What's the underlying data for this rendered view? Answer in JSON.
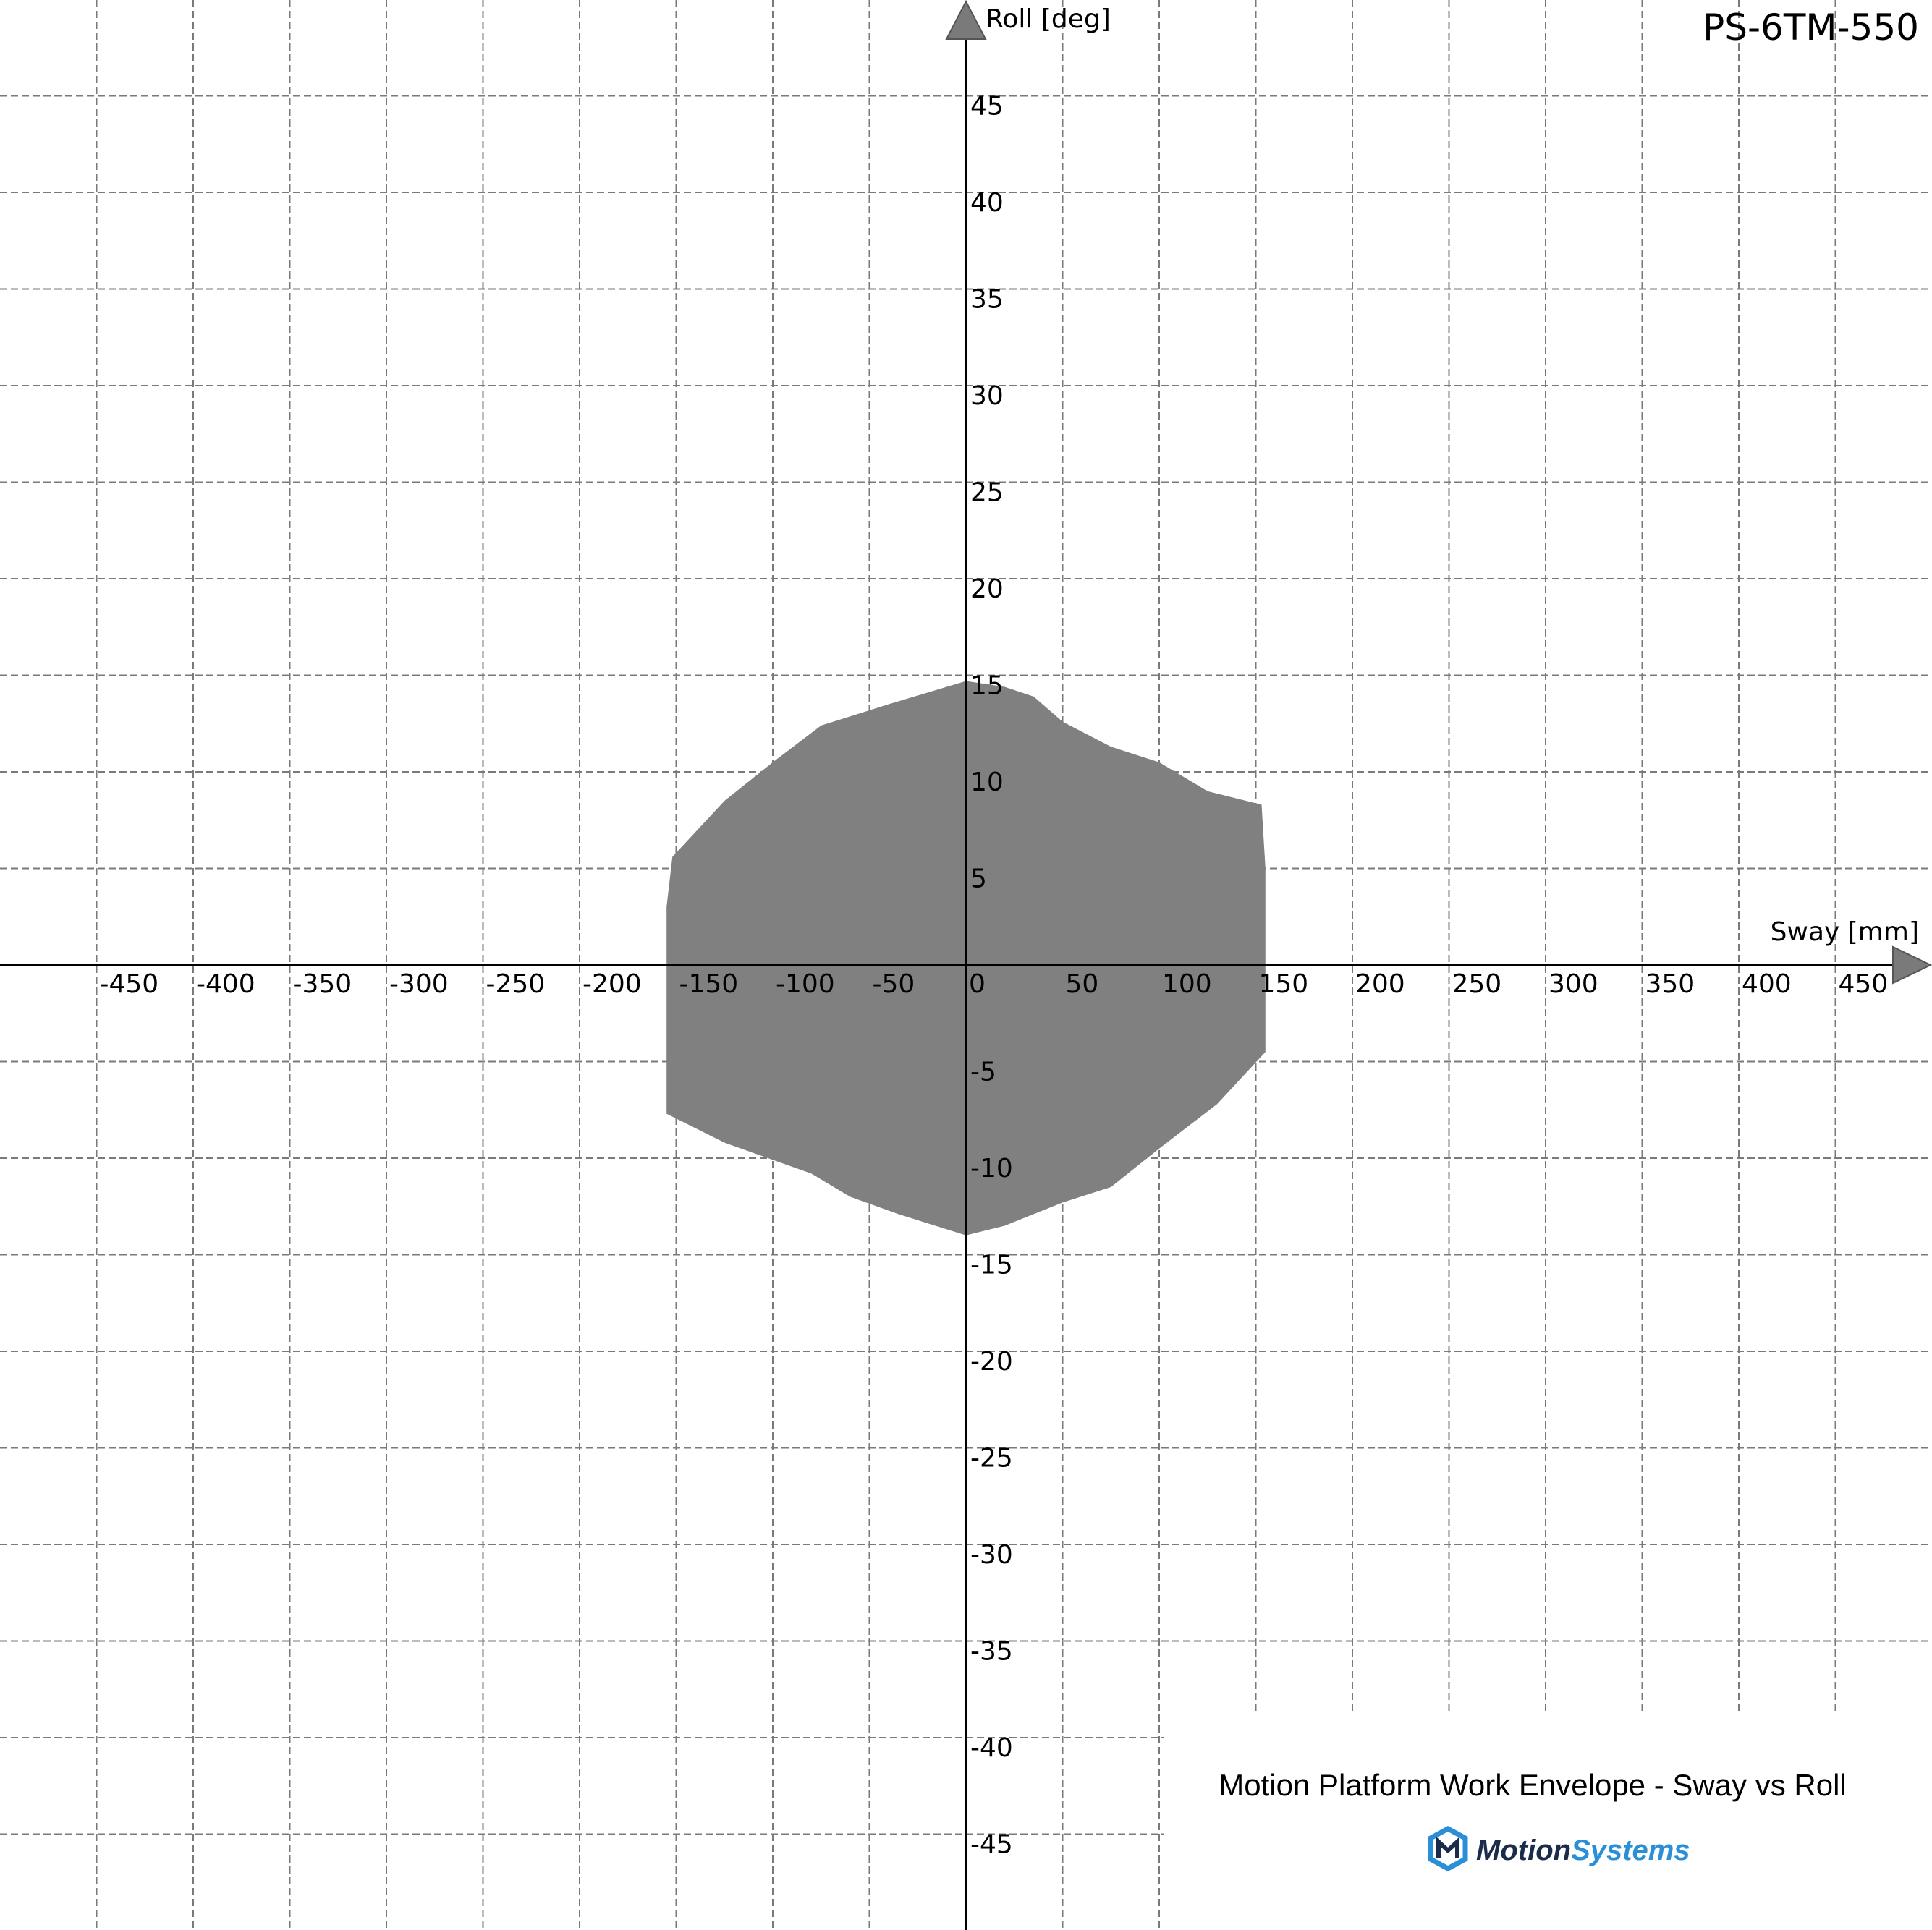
{
  "model": "PS-6TM-550",
  "subtitle": "Motion Platform Work Envelope - Sway vs Roll",
  "brand": {
    "prefix": "Motion",
    "suffix": "Systems",
    "colors": {
      "prefix": "#1b2b4a",
      "suffix": "#2a8fd6",
      "logo_dark": "#1b2b4a",
      "logo_light": "#2a8fd6"
    }
  },
  "colors": {
    "envelope_fill": "#808080",
    "grid": "#7a7a7a",
    "axis": "#000000",
    "arrow": "#7a7a7a"
  },
  "chart_data": {
    "type": "area",
    "xlabel": "Sway [mm]",
    "ylabel": "Roll [deg]",
    "xlim": [
      -500,
      500
    ],
    "ylim": [
      -50,
      50
    ],
    "grid": true,
    "x_ticks": [
      -450,
      -400,
      -350,
      -300,
      -250,
      -200,
      -150,
      -100,
      -50,
      0,
      50,
      100,
      150,
      200,
      250,
      300,
      350,
      400,
      450
    ],
    "y_ticks": [
      45,
      40,
      35,
      30,
      25,
      20,
      15,
      10,
      5,
      -5,
      -10,
      -15,
      -20,
      -25,
      -30,
      -35,
      -40,
      -45
    ],
    "envelope": [
      [
        0,
        14.7
      ],
      [
        20,
        14.4
      ],
      [
        35,
        13.9
      ],
      [
        50,
        12.6
      ],
      [
        75,
        11.3
      ],
      [
        100,
        10.5
      ],
      [
        125,
        9.0
      ],
      [
        153,
        8.3
      ],
      [
        155,
        5.0
      ],
      [
        155,
        0
      ],
      [
        155,
        -4.5
      ],
      [
        130,
        -7.2
      ],
      [
        100,
        -9.5
      ],
      [
        75,
        -11.5
      ],
      [
        50,
        -12.3
      ],
      [
        20,
        -13.5
      ],
      [
        0,
        -14.0
      ],
      [
        -35,
        -12.9
      ],
      [
        -60,
        -12.0
      ],
      [
        -80,
        -10.8
      ],
      [
        -125,
        -9.2
      ],
      [
        -155,
        -7.7
      ],
      [
        -155,
        -3.0
      ],
      [
        -155,
        0
      ],
      [
        -155,
        3.0
      ],
      [
        -152,
        5.6
      ],
      [
        -125,
        8.5
      ],
      [
        -100,
        10.5
      ],
      [
        -75,
        12.4
      ],
      [
        -40,
        13.5
      ],
      [
        -20,
        14.1
      ]
    ]
  }
}
